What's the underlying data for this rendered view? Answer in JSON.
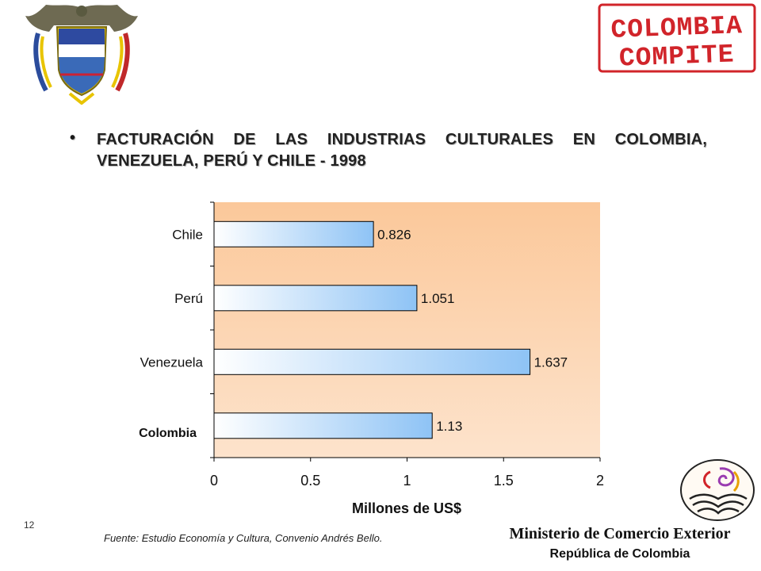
{
  "slide": {
    "title": "FACTURACIÓN DE LAS INDUSTRIAS CULTURALES EN COLOMBIA, VENEZUELA, PERÚ Y CHILE - 1998",
    "bullet": "•",
    "source": "Fuente: Estudio Economía y Cultura, Convenio Andrés Bello.",
    "page_number": "12",
    "ministry": "Ministerio de Comercio Exterior",
    "republic": "República de Colombia",
    "stamp_text": [
      "COLOMBIA",
      "COMPITE"
    ],
    "colors": {
      "plot_bg_top": "#fbc89a",
      "plot_bg_bottom": "#fde3cc",
      "bar_light": "#ffffff",
      "bar_dark": "#8ec3f5",
      "stamp_red": "#d1242a"
    }
  },
  "chart_data": {
    "type": "bar",
    "orientation": "horizontal",
    "categories": [
      "Chile",
      "Perú",
      "Venezuela",
      "Colombia"
    ],
    "values": [
      0.826,
      1.051,
      1.637,
      1.13
    ],
    "value_labels": [
      "0.826",
      "1.051",
      "1.637",
      "1.13"
    ],
    "title": "",
    "xlabel": "Millones de US$",
    "ylabel": "",
    "xlim": [
      0,
      2
    ],
    "xticks": [
      "0",
      "0.5",
      "1",
      "1.5",
      "2"
    ],
    "grid": false,
    "legend": "none"
  }
}
